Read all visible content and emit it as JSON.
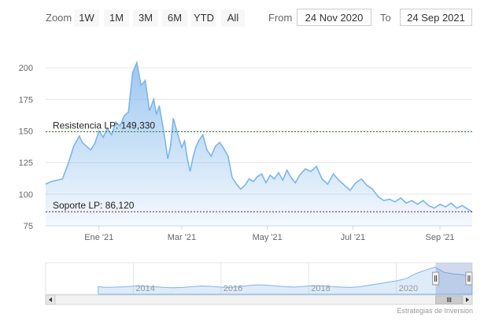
{
  "range_selector": {
    "zoom_label": "Zoom",
    "buttons": [
      "1W",
      "1M",
      "3M",
      "6M",
      "YTD",
      "All"
    ],
    "from_label": "From",
    "from_value": "24 Nov 2020",
    "to_label": "To",
    "to_value": "24 Sep 2021"
  },
  "credits": "Estrategias de Inversión",
  "colors": {
    "line": "#7cb5ec",
    "fill_top": "#7cb5ec",
    "resistance_line": "#2e7d32",
    "support_line": "#6b1a3a"
  },
  "chart_data": {
    "type": "area",
    "title": "",
    "xlabel": "",
    "ylabel": "",
    "x_range": [
      "2020-11-24",
      "2021-09-24"
    ],
    "ylim": [
      75,
      210
    ],
    "y_ticks": [
      "75",
      "100",
      "125",
      "150",
      "175",
      "200"
    ],
    "x_ticks": [
      {
        "date": "2021-01-01",
        "label": "Ene '21"
      },
      {
        "date": "2021-03-01",
        "label": "Mar '21"
      },
      {
        "date": "2021-05-01",
        "label": "May '21"
      },
      {
        "date": "2021-07-01",
        "label": "Jul '21"
      },
      {
        "date": "2021-09-01",
        "label": "Sep '21"
      }
    ],
    "grid": true,
    "series": [
      {
        "x": [
          "2020-11-24",
          "2020-11-28",
          "2020-12-02",
          "2020-12-06",
          "2020-12-10",
          "2020-12-14",
          "2020-12-18",
          "2020-12-20",
          "2020-12-23",
          "2020-12-26",
          "2020-12-29",
          "2021-01-01",
          "2021-01-04",
          "2021-01-07",
          "2021-01-10",
          "2021-01-13",
          "2021-01-16",
          "2021-01-19",
          "2021-01-22",
          "2021-01-25",
          "2021-01-28",
          "2021-01-31",
          "2021-02-03",
          "2021-02-06",
          "2021-02-09",
          "2021-02-11",
          "2021-02-13",
          "2021-02-15",
          "2021-02-17",
          "2021-02-19",
          "2021-02-21",
          "2021-02-23",
          "2021-02-25",
          "2021-02-27",
          "2021-03-01",
          "2021-03-03",
          "2021-03-05",
          "2021-03-07",
          "2021-03-09",
          "2021-03-11",
          "2021-03-13",
          "2021-03-16",
          "2021-03-19",
          "2021-03-22",
          "2021-03-25",
          "2021-03-28",
          "2021-03-31",
          "2021-04-03",
          "2021-04-06",
          "2021-04-09",
          "2021-04-12",
          "2021-04-15",
          "2021-04-18",
          "2021-04-21",
          "2021-04-24",
          "2021-04-27",
          "2021-04-30",
          "2021-05-03",
          "2021-05-06",
          "2021-05-09",
          "2021-05-12",
          "2021-05-15",
          "2021-05-18",
          "2021-05-21",
          "2021-05-24",
          "2021-05-28",
          "2021-06-01",
          "2021-06-05",
          "2021-06-09",
          "2021-06-13",
          "2021-06-17",
          "2021-06-21",
          "2021-06-25",
          "2021-06-29",
          "2021-07-03",
          "2021-07-07",
          "2021-07-11",
          "2021-07-15",
          "2021-07-19",
          "2021-07-23",
          "2021-07-27",
          "2021-07-31",
          "2021-08-04",
          "2021-08-08",
          "2021-08-12",
          "2021-08-16",
          "2021-08-20",
          "2021-08-24",
          "2021-08-28",
          "2021-09-01",
          "2021-09-05",
          "2021-09-09",
          "2021-09-13",
          "2021-09-17",
          "2021-09-21",
          "2021-09-24"
        ],
        "values": [
          108,
          110,
          111,
          112,
          124,
          138,
          146,
          141,
          138,
          135,
          140,
          150,
          145,
          152,
          147,
          157,
          154,
          162,
          165,
          196,
          204,
          186,
          190,
          166,
          175,
          163,
          170,
          157,
          144,
          128,
          138,
          160,
          152,
          144,
          137,
          142,
          128,
          118,
          129,
          137,
          142,
          147,
          135,
          130,
          138,
          141,
          136,
          130,
          113,
          108,
          104,
          107,
          112,
          110,
          114,
          116,
          109,
          115,
          112,
          117,
          111,
          119,
          113,
          109,
          115,
          120,
          118,
          122,
          112,
          108,
          116,
          111,
          107,
          103,
          109,
          112,
          107,
          104,
          98,
          95,
          96,
          94,
          97,
          93,
          95,
          92,
          95,
          91,
          89,
          92,
          90,
          93,
          89,
          91,
          88,
          86
        ]
      }
    ],
    "annotations": [
      {
        "label": "Resistencia LP: 149,330",
        "value": 149.33,
        "style": "dashed"
      },
      {
        "label": "Soporte LP: 86,120",
        "value": 86.12,
        "style": "dashed"
      }
    ],
    "navigator": {
      "year_labels": [
        "2014",
        "2016",
        "2018",
        "2020"
      ],
      "start_year": 2012,
      "end_year": 2021.73,
      "selected": [
        "2020-11-24",
        "2021-09-24"
      ],
      "values": [
        60,
        58,
        59,
        60,
        62,
        61,
        60,
        58,
        57,
        58,
        60,
        62,
        61,
        59,
        58,
        60,
        63,
        65,
        64,
        62,
        60,
        59,
        61,
        63,
        62,
        60,
        59,
        58,
        60,
        64,
        68,
        72,
        76,
        82,
        95,
        104,
        112,
        98,
        94,
        92,
        86
      ]
    }
  }
}
